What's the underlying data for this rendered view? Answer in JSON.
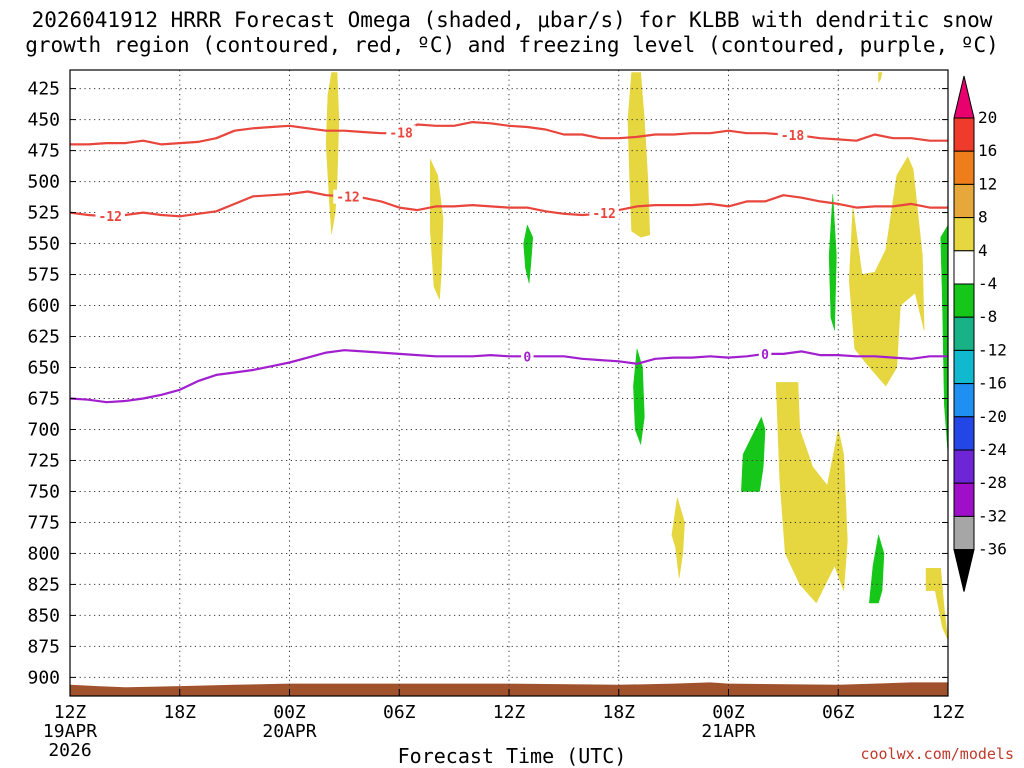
{
  "title": "2026041912 HRRR Forecast Omega (shaded, μbar/s) for KLBB with dendritic snow\ngrowth region (contoured, red, ºC) and freezing level (contoured, purple, ºC)",
  "footer": {
    "credit": "coolwx.com/models"
  },
  "chart_data": {
    "type": "time-height",
    "title": "2026041912 HRRR Forecast Omega (shaded, μbar/s) for KLBB with dendritic snow growth region (contoured, red, ºC) and freezing level (contoured, purple, ºC)",
    "xlabel": "Forecast Time (UTC)",
    "ylabel": "",
    "x_range_hours": [
      0,
      48
    ],
    "x_ticks": [
      {
        "hour": 0,
        "label": "12Z",
        "date": "19APR",
        "year": "2026"
      },
      {
        "hour": 6,
        "label": "18Z"
      },
      {
        "hour": 12,
        "label": "00Z",
        "date": "20APR"
      },
      {
        "hour": 18,
        "label": "06Z"
      },
      {
        "hour": 24,
        "label": "12Z"
      },
      {
        "hour": 30,
        "label": "18Z"
      },
      {
        "hour": 36,
        "label": "00Z",
        "date": "21APR"
      },
      {
        "hour": 42,
        "label": "06Z"
      },
      {
        "hour": 48,
        "label": "12Z"
      }
    ],
    "y_range_hpa": [
      915,
      410
    ],
    "y_ticks": [
      425,
      450,
      475,
      500,
      525,
      550,
      575,
      600,
      625,
      650,
      675,
      700,
      725,
      750,
      775,
      800,
      825,
      850,
      875,
      900
    ],
    "grid": true,
    "colorbar": {
      "ticks": [
        "20",
        "16",
        "12",
        "8",
        "4",
        "-4",
        "-8",
        "-12",
        "-16",
        "-20",
        "-24",
        "-28",
        "-32",
        "-36"
      ],
      "colors_top_to_bottom": [
        "#e8006e",
        "#ef3b2c",
        "#ee7d1c",
        "#e6a83a",
        "#e6d640",
        "#ffffff",
        "#16c71a",
        "#19b286",
        "#11b9cf",
        "#1f8ff2",
        "#2346e6",
        "#6e25d6",
        "#a00fc8",
        "#a6a6a6",
        "#000000"
      ]
    },
    "contours": [
      {
        "name": "-18",
        "color": "#e8453c",
        "hours": [
          0,
          1,
          2,
          3,
          4,
          5,
          6,
          7,
          8,
          9,
          10,
          11,
          12,
          13,
          14,
          15,
          16,
          17,
          18,
          19,
          20,
          21,
          22,
          23,
          24,
          25,
          26,
          27,
          28,
          29,
          30,
          31,
          32,
          33,
          34,
          35,
          36,
          37,
          38,
          39,
          40,
          41,
          42,
          43,
          44,
          45,
          46,
          47,
          48
        ],
        "hpa": [
          470,
          470,
          469,
          469,
          467,
          470,
          469,
          468,
          465,
          459,
          457,
          456,
          455,
          457,
          459,
          459,
          460,
          461,
          461,
          454,
          455,
          455,
          452,
          453,
          455,
          456,
          458,
          462,
          462,
          465,
          465,
          464,
          462,
          462,
          461,
          461,
          459,
          461,
          461,
          462,
          463,
          465,
          466,
          467,
          462,
          465,
          465,
          467,
          467
        ],
        "labels": [
          {
            "hour": 18.1,
            "text": "-18"
          },
          {
            "hour": 39.5,
            "text": "-18"
          }
        ]
      },
      {
        "name": "-12",
        "color": "#e8453c",
        "hours": [
          0,
          1,
          2,
          3,
          4,
          5,
          6,
          7,
          8,
          9,
          10,
          11,
          12,
          13,
          14,
          15,
          16,
          17,
          18,
          19,
          20,
          21,
          22,
          23,
          24,
          25,
          26,
          27,
          28,
          29,
          30,
          31,
          32,
          33,
          34,
          35,
          36,
          37,
          38,
          39,
          40,
          41,
          42,
          43,
          44,
          45,
          46,
          47,
          48
        ],
        "hpa": [
          525,
          527,
          528,
          527,
          525,
          527,
          528,
          526,
          524,
          518,
          512,
          511,
          510,
          508,
          511,
          512,
          513,
          516,
          521,
          523,
          520,
          520,
          519,
          520,
          521,
          521,
          524,
          526,
          527,
          526,
          523,
          520,
          519,
          519,
          519,
          518,
          520,
          516,
          516,
          511,
          513,
          516,
          518,
          521,
          520,
          520,
          518,
          521,
          521
        ],
        "labels": [
          {
            "hour": 2.2,
            "text": "-12"
          },
          {
            "hour": 15.2,
            "text": "-12"
          },
          {
            "hour": 29.2,
            "text": "-12"
          }
        ]
      },
      {
        "name": "0",
        "color": "#a21fcf",
        "hours": [
          0,
          1,
          2,
          3,
          4,
          5,
          6,
          7,
          8,
          9,
          10,
          11,
          12,
          13,
          14,
          15,
          16,
          17,
          18,
          19,
          20,
          21,
          22,
          23,
          24,
          25,
          26,
          27,
          28,
          29,
          30,
          31,
          32,
          33,
          34,
          35,
          36,
          37,
          38,
          39,
          40,
          41,
          42,
          43,
          44,
          45,
          46,
          47,
          48
        ],
        "hpa": [
          675,
          676,
          678,
          677,
          675,
          672,
          668,
          661,
          656,
          654,
          652,
          649,
          646,
          642,
          638,
          636,
          637,
          638,
          639,
          640,
          641,
          641,
          641,
          640,
          641,
          641,
          641,
          641,
          643,
          644,
          645,
          647,
          643,
          642,
          642,
          641,
          642,
          641,
          639,
          639,
          637,
          640,
          640,
          641,
          641,
          642,
          643,
          641,
          641
        ],
        "labels": [
          {
            "hour": 25.0,
            "text": "0"
          },
          {
            "hour": 38.0,
            "text": "0"
          }
        ]
      }
    ],
    "shaded_regions": [
      {
        "name": "omega-yellow-1",
        "color": "#e6d640",
        "points": [
          [
            14.3,
            412
          ],
          [
            14.6,
            412
          ],
          [
            14.7,
            450
          ],
          [
            14.6,
            500
          ],
          [
            14.5,
            525
          ],
          [
            14.3,
            542
          ],
          [
            14.2,
            520
          ],
          [
            14.0,
            470
          ],
          [
            14.1,
            430
          ]
        ]
      },
      {
        "name": "omega-yellow-2",
        "color": "#e6d640",
        "points": [
          [
            19.7,
            482
          ],
          [
            20.1,
            495
          ],
          [
            20.4,
            530
          ],
          [
            20.3,
            575
          ],
          [
            20.2,
            595
          ],
          [
            19.9,
            585
          ],
          [
            19.7,
            540
          ]
        ]
      },
      {
        "name": "omega-green-1",
        "color": "#16c71a",
        "points": [
          [
            25.0,
            535
          ],
          [
            25.3,
            545
          ],
          [
            25.2,
            565
          ],
          [
            25.1,
            582
          ],
          [
            24.9,
            570
          ],
          [
            24.8,
            550
          ]
        ]
      },
      {
        "name": "omega-yellow-3",
        "color": "#e6d640",
        "points": [
          [
            30.7,
            412
          ],
          [
            31.2,
            412
          ],
          [
            31.4,
            450
          ],
          [
            31.6,
            500
          ],
          [
            31.7,
            543
          ],
          [
            31.2,
            545
          ],
          [
            30.7,
            540
          ],
          [
            30.6,
            500
          ],
          [
            30.5,
            450
          ]
        ]
      },
      {
        "name": "omega-green-2",
        "color": "#16c71a",
        "points": [
          [
            31.0,
            635
          ],
          [
            31.3,
            650
          ],
          [
            31.4,
            690
          ],
          [
            31.2,
            712
          ],
          [
            30.9,
            700
          ],
          [
            30.8,
            665
          ]
        ]
      },
      {
        "name": "omega-yellow-4",
        "color": "#e6d640",
        "points": [
          [
            33.2,
            755
          ],
          [
            33.6,
            775
          ],
          [
            33.5,
            800
          ],
          [
            33.3,
            820
          ],
          [
            33.1,
            795
          ],
          [
            32.9,
            785
          ]
        ]
      },
      {
        "name": "omega-green-3",
        "color": "#16c71a",
        "points": [
          [
            37.8,
            690
          ],
          [
            38.0,
            700
          ],
          [
            37.9,
            730
          ],
          [
            37.7,
            750
          ],
          [
            36.7,
            750
          ],
          [
            36.8,
            720
          ],
          [
            37.3,
            705
          ]
        ]
      },
      {
        "name": "omega-yellow-5",
        "color": "#e6d640",
        "points": [
          [
            38.6,
            662
          ],
          [
            39.8,
            662
          ],
          [
            39.9,
            700
          ],
          [
            40.6,
            730
          ],
          [
            41.4,
            745
          ],
          [
            42.0,
            700
          ],
          [
            42.3,
            720
          ],
          [
            42.5,
            790
          ],
          [
            42.3,
            830
          ],
          [
            41.8,
            810
          ],
          [
            40.8,
            840
          ],
          [
            39.9,
            825
          ],
          [
            39.1,
            800
          ],
          [
            38.8,
            740
          ]
        ]
      },
      {
        "name": "omega-green-4",
        "color": "#16c71a",
        "points": [
          [
            41.7,
            510
          ],
          [
            41.9,
            560
          ],
          [
            41.8,
            620
          ],
          [
            41.6,
            610
          ],
          [
            41.5,
            560
          ]
        ]
      },
      {
        "name": "omega-yellow-6",
        "color": "#e6d640",
        "points": [
          [
            42.8,
            520
          ],
          [
            43.3,
            575
          ],
          [
            44.0,
            573
          ],
          [
            44.6,
            555
          ],
          [
            45.2,
            495
          ],
          [
            45.8,
            480
          ],
          [
            46.1,
            490
          ],
          [
            46.6,
            560
          ],
          [
            46.7,
            620
          ],
          [
            46.2,
            590
          ],
          [
            45.4,
            600
          ],
          [
            45.2,
            650
          ],
          [
            44.6,
            665
          ],
          [
            43.6,
            648
          ],
          [
            42.9,
            635
          ],
          [
            42.6,
            580
          ]
        ]
      },
      {
        "name": "omega-green-5",
        "color": "#16c71a",
        "points": [
          [
            44.2,
            785
          ],
          [
            44.5,
            800
          ],
          [
            44.4,
            830
          ],
          [
            44.2,
            840
          ],
          [
            43.7,
            840
          ],
          [
            43.9,
            810
          ]
        ]
      },
      {
        "name": "omega-green-6",
        "color": "#16c71a",
        "points": [
          [
            48.0,
            535
          ],
          [
            48.0,
            720
          ],
          [
            47.8,
            680
          ],
          [
            47.7,
            600
          ],
          [
            47.6,
            545
          ]
        ]
      },
      {
        "name": "omega-yellow-7",
        "color": "#e6d640",
        "points": [
          [
            46.8,
            812
          ],
          [
            47.6,
            812
          ],
          [
            47.8,
            845
          ],
          [
            48.0,
            870
          ],
          [
            47.7,
            860
          ],
          [
            47.3,
            830
          ],
          [
            46.8,
            830
          ]
        ]
      },
      {
        "name": "omega-yellow-8",
        "color": "#e6d640",
        "points": [
          [
            44.2,
            412
          ],
          [
            44.4,
            412
          ],
          [
            44.3,
            418
          ],
          [
            44.2,
            420
          ]
        ]
      }
    ],
    "terrain": {
      "color": "#a0522d",
      "hours": [
        0,
        1.5,
        3,
        6,
        9,
        12,
        24,
        30,
        33,
        35,
        36,
        42,
        44,
        46,
        48
      ],
      "hpa": [
        906,
        907,
        908,
        907,
        906,
        905,
        905,
        906,
        905,
        904,
        905,
        906,
        905,
        904,
        904
      ]
    }
  }
}
